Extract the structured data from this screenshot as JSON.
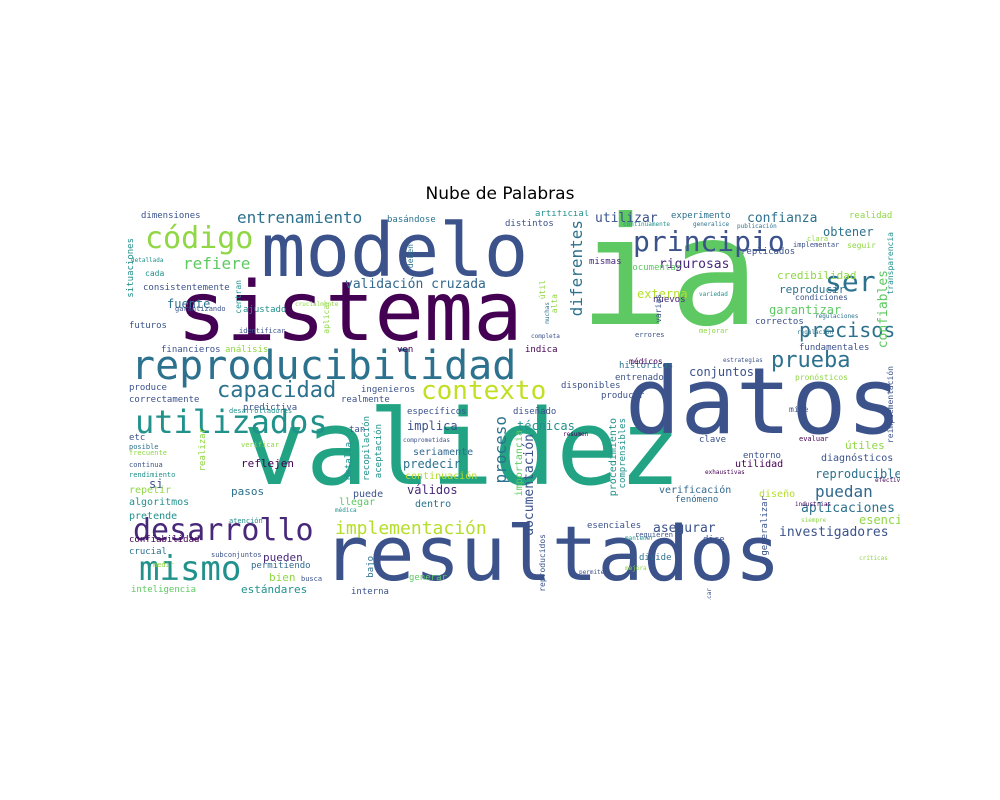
{
  "title": "Nube de Palabras",
  "words": [
    {
      "t": "validez",
      "c": "#21a384"
    },
    {
      "t": "ia",
      "c": "#5ec962"
    },
    {
      "t": "sistema",
      "c": "#440154"
    },
    {
      "t": "resultados",
      "c": "#3b528b"
    },
    {
      "t": "datos",
      "c": "#3b528b"
    },
    {
      "t": "modelo",
      "c": "#3b528b"
    },
    {
      "t": "reproducibilidad",
      "c": "#2c718e"
    },
    {
      "t": "utilizados",
      "c": "#21918c"
    },
    {
      "t": "contexto",
      "c": "#c2df23"
    },
    {
      "t": "capacidad",
      "c": "#2c718e"
    },
    {
      "t": "código",
      "c": "#8fd744"
    },
    {
      "t": "principio",
      "c": "#3b528b"
    },
    {
      "t": "ser",
      "c": "#2c718e"
    },
    {
      "t": "desarrollo",
      "c": "#482878"
    },
    {
      "t": "mismo",
      "c": "#21918c"
    },
    {
      "t": "prueba",
      "c": "#2c718e"
    },
    {
      "t": "precisos",
      "c": "#2c718e"
    },
    {
      "t": "implementación",
      "c": "#b5de2b"
    },
    {
      "t": "proceso",
      "c": "#2c718e"
    },
    {
      "t": "diferentes",
      "c": "#2c718e"
    },
    {
      "t": "entrenamiento",
      "c": "#2c718e"
    },
    {
      "t": "refiere",
      "c": "#5ec962"
    },
    {
      "t": "validación cruzada",
      "c": "#31688e"
    },
    {
      "t": "confiables",
      "c": "#5ec962"
    },
    {
      "t": "puedan",
      "c": "#31688e"
    },
    {
      "t": "confianza",
      "c": "#2c718e"
    },
    {
      "t": "utilizar",
      "c": "#3b528b"
    },
    {
      "t": "rigurosas",
      "c": "#482878"
    },
    {
      "t": "documentación",
      "c": "#3b528b"
    },
    {
      "t": "asegurar",
      "c": "#3b528b"
    },
    {
      "t": "investigadores",
      "c": "#3b528b"
    },
    {
      "t": "aplicaciones",
      "c": "#2c718e"
    },
    {
      "t": "esencial",
      "c": "#8fd744"
    },
    {
      "t": "reproducible",
      "c": "#2c718e"
    },
    {
      "t": "garantizar",
      "c": "#5ec962"
    },
    {
      "t": "credibilidad",
      "c": "#8fd744"
    },
    {
      "t": "reproducir",
      "c": "#2c718e"
    },
    {
      "t": "obtener",
      "c": "#2c718e"
    },
    {
      "t": "externa",
      "c": "#b5de2b"
    },
    {
      "t": "conjuntos",
      "c": "#3b528b"
    },
    {
      "t": "técnicas",
      "c": "#21918c"
    },
    {
      "t": "implica",
      "c": "#3b528b"
    },
    {
      "t": "predecir",
      "c": "#2c718e"
    },
    {
      "t": "válidos",
      "c": "#482878"
    },
    {
      "t": "fuente",
      "c": "#2c718e"
    },
    {
      "t": "estándares",
      "c": "#21918c"
    },
    {
      "t": "pueden",
      "c": "#482878"
    },
    {
      "t": "bien",
      "c": "#8fd744"
    },
    {
      "t": "útiles",
      "c": "#8fd744"
    },
    {
      "t": "utilidad",
      "c": "#440154"
    },
    {
      "t": "diagnósticos",
      "c": "#3b528b"
    },
    {
      "t": "entorno",
      "c": "#3b528b"
    },
    {
      "t": "procedimiento",
      "c": "#21918c"
    },
    {
      "t": "verificación",
      "c": "#31688e"
    },
    {
      "t": "fenómeno",
      "c": "#31688e"
    },
    {
      "t": "diseño",
      "c": "#b5de2b"
    },
    {
      "t": "importancia",
      "c": "#5ec962"
    },
    {
      "t": "continuación",
      "c": "#b5de2b"
    },
    {
      "t": "seriamente",
      "c": "#31688e"
    },
    {
      "t": "dentro",
      "c": "#2c718e"
    },
    {
      "t": "llegar",
      "c": "#5ec962"
    },
    {
      "t": "puede",
      "c": "#3b528b"
    },
    {
      "t": "reflejen",
      "c": "#440154"
    },
    {
      "t": "pasos",
      "c": "#2c718e"
    },
    {
      "t": "si",
      "c": "#3b528b"
    },
    {
      "t": "repetir",
      "c": "#8fd744"
    },
    {
      "t": "algoritmos",
      "c": "#21918c"
    },
    {
      "t": "pretende",
      "c": "#21918c"
    },
    {
      "t": "confiabilidad",
      "c": "#440154"
    },
    {
      "t": "crucial",
      "c": "#2c718e"
    },
    {
      "t": "inteligencia",
      "c": "#5ec962"
    },
    {
      "t": "permitiendo",
      "c": "#31688e"
    },
    {
      "t": "interna",
      "c": "#3b528b"
    },
    {
      "t": "generar",
      "c": "#5ec962"
    },
    {
      "t": "específicos",
      "c": "#3b528b"
    },
    {
      "t": "diseñado",
      "c": "#3b528b"
    },
    {
      "t": "producir",
      "c": "#3b528b"
    },
    {
      "t": "entrenado",
      "c": "#3b528b"
    },
    {
      "t": "disponibles",
      "c": "#3b528b"
    },
    {
      "t": "históricos",
      "c": "#2c718e"
    },
    {
      "t": "indica",
      "c": "#440154"
    },
    {
      "t": "ingenieros",
      "c": "#3b528b"
    },
    {
      "t": "realmente",
      "c": "#3b528b"
    },
    {
      "t": "predictiva",
      "c": "#3b528b"
    },
    {
      "t": "produce",
      "c": "#3b528b"
    },
    {
      "t": "correctamente",
      "c": "#3b528b"
    },
    {
      "t": "financieros",
      "c": "#3b528b"
    },
    {
      "t": "análisis",
      "c": "#8fd744"
    },
    {
      "t": "ven",
      "c": "#440154"
    },
    {
      "t": "futuros",
      "c": "#3b528b"
    },
    {
      "t": "ajustado",
      "c": "#21918c"
    },
    {
      "t": "consistentemente",
      "c": "#3b528b"
    },
    {
      "t": "cada",
      "c": "#21918c"
    },
    {
      "t": "situaciones",
      "c": "#21918c"
    },
    {
      "t": "dimensiones",
      "c": "#3b528b"
    },
    {
      "t": "basándose",
      "c": "#2c718e"
    },
    {
      "t": "distintos",
      "c": "#3b528b"
    },
    {
      "t": "artificial",
      "c": "#21918c"
    },
    {
      "t": "experimento",
      "c": "#2c718e"
    },
    {
      "t": "realidad",
      "c": "#8fd744"
    },
    {
      "t": "mismas",
      "c": "#482878"
    },
    {
      "t": "documentar",
      "c": "#5ec962"
    },
    {
      "t": "médicos",
      "c": "#440154"
    },
    {
      "t": "replicados",
      "c": "#3b528b"
    },
    {
      "t": "nuevos",
      "c": "#482878"
    },
    {
      "t": "correctos",
      "c": "#3b528b"
    },
    {
      "t": "fundamentales",
      "c": "#3b528b"
    },
    {
      "t": "pronósticos",
      "c": "#8fd744"
    },
    {
      "t": "condiciones",
      "c": "#3b528b"
    },
    {
      "t": "transparencia",
      "c": "#21918c"
    },
    {
      "t": "seguir",
      "c": "#8fd744"
    },
    {
      "t": "implementar",
      "c": "#3b528b"
    },
    {
      "t": "clara",
      "c": "#8fd744"
    },
    {
      "t": "reimplementación",
      "c": "#3b528b"
    },
    {
      "t": "mide",
      "c": "#3b528b"
    },
    {
      "t": "evaluar",
      "c": "#440154"
    },
    {
      "t": "clave",
      "c": "#3b528b"
    },
    {
      "t": "comprensibles",
      "c": "#21918c"
    },
    {
      "t": "esenciales",
      "c": "#3b528b"
    },
    {
      "t": "requieren",
      "c": "#3b528b"
    },
    {
      "t": "dice",
      "c": "#3b528b"
    },
    {
      "t": "divide",
      "c": "#2c718e"
    },
    {
      "t": "generalizar",
      "c": "#3b528b"
    },
    {
      "t": "aceptación",
      "c": "#21918c"
    },
    {
      "t": "recopilación",
      "c": "#21918c"
    },
    {
      "t": "detalla",
      "c": "#21918c"
    },
    {
      "t": "tan",
      "c": "#3b528b"
    },
    {
      "t": "bajo",
      "c": "#2c718e"
    },
    {
      "t": "reproducidos",
      "c": "#3b528b"
    },
    {
      "t": "útil",
      "c": "#8fd744"
    },
    {
      "t": "alta",
      "c": "#8fd744"
    },
    {
      "t": "varias",
      "c": "#3b528b"
    },
    {
      "t": "etc",
      "c": "#3b528b"
    },
    {
      "t": "realizar",
      "c": "#8fd744"
    },
    {
      "t": "deben",
      "c": "#2c718e"
    },
    {
      "t": "centran",
      "c": "#21918c"
    },
    {
      "t": "aplicar",
      "c": "#8fd744"
    },
    {
      "t": "identificar",
      "c": "#3b528b"
    },
    {
      "t": "garantizando",
      "c": "#3b528b"
    },
    {
      "t": "crucialmente",
      "c": "#8fd744"
    },
    {
      "t": "detallada",
      "c": "#21918c"
    },
    {
      "t": "desarrolladores",
      "c": "#21918c"
    },
    {
      "t": "continua",
      "c": "#3b528b"
    },
    {
      "t": "rendimiento",
      "c": "#21918c"
    },
    {
      "t": "atención",
      "c": "#21918c"
    },
    {
      "t": "medir",
      "c": "#8fd744"
    },
    {
      "t": "subconjuntos",
      "c": "#3b528b"
    },
    {
      "t": "busca",
      "c": "#3b528b"
    },
    {
      "t": "posible",
      "c": "#2c718e"
    },
    {
      "t": "frecuente",
      "c": "#8fd744"
    },
    {
      "t": "verificar",
      "c": "#8fd744"
    },
    {
      "t": "comprometidas",
      "c": "#3b528b"
    },
    {
      "t": "resumen",
      "c": "#440154"
    },
    {
      "t": "médica",
      "c": "#21918c"
    },
    {
      "t": "completa",
      "c": "#3b528b"
    },
    {
      "t": "muchas",
      "c": "#2c718e"
    },
    {
      "t": "errores",
      "c": "#3b528b"
    },
    {
      "t": "mejorar",
      "c": "#8fd744"
    },
    {
      "t": "estrategias",
      "c": "#3b528b"
    },
    {
      "t": "variedad",
      "c": "#21918c"
    },
    {
      "t": "regulación",
      "c": "#2c718e"
    },
    {
      "t": "regulaciones",
      "c": "#2c718e"
    },
    {
      "t": "exhaustivas",
      "c": "#440154"
    },
    {
      "t": "industrias",
      "c": "#440154"
    },
    {
      "t": "efectiva",
      "c": "#440154"
    },
    {
      "t": "siempre",
      "c": "#8fd744"
    },
    {
      "t": "críticas",
      "c": "#8fd744"
    },
    {
      "t": "mantener",
      "c": "#21918c"
    },
    {
      "t": "mejora",
      "c": "#8fd744"
    },
    {
      "t": "permite",
      "c": "#3b528b"
    },
    {
      "t": "publicar",
      "c": "#3b528b"
    },
    {
      "t": "continuamente",
      "c": "#21918c"
    },
    {
      "t": "generalice",
      "c": "#2c718e"
    },
    {
      "t": "publicación",
      "c": "#2c718e"
    }
  ]
}
